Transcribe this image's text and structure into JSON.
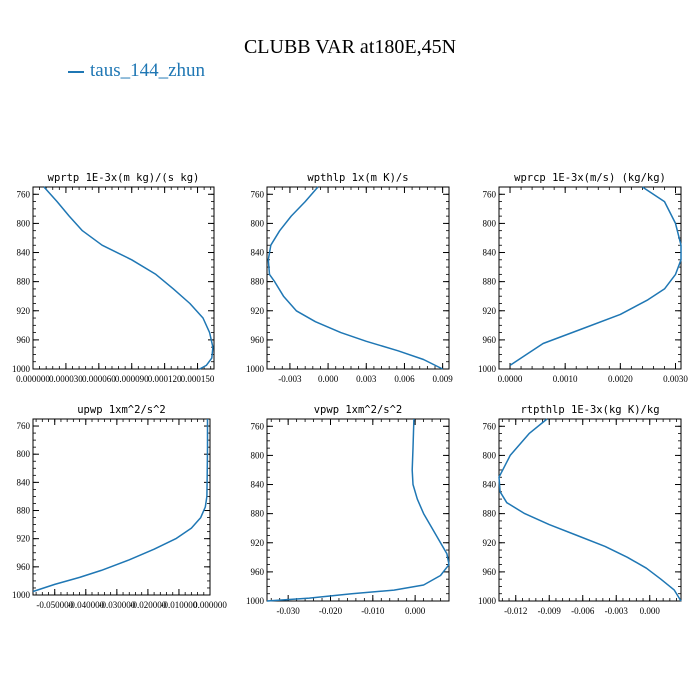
{
  "title": "CLUBB VAR at180E,45N",
  "legend": {
    "label": "taus_144_zhun",
    "color": "#1f77b4"
  },
  "chart_data": [
    {
      "type": "line",
      "title": "wprtp   1E-3x(m kg)/(s kg)",
      "xlim": [
        0,
        0.000165
      ],
      "ylim": [
        1000,
        750
      ],
      "xticks": [
        0,
        3e-05,
        6e-05,
        9e-05,
        0.00012,
        0.00015
      ],
      "xticklabels": [
        "0.000000",
        "0.000030",
        "0.000060",
        "0.000090",
        "0.000120",
        "0.000150"
      ],
      "yticks": [
        760,
        800,
        840,
        880,
        920,
        960,
        1000
      ],
      "series": [
        {
          "x": [
            1e-05,
            2.2e-05,
            3.3e-05,
            4.5e-05,
            6.3e-05,
            9e-05,
            0.000112,
            0.000128,
            0.000143,
            0.000155,
            0.000161,
            0.000164,
            0.000163,
            0.000158,
            0.000152
          ],
          "y": [
            750,
            770,
            790,
            810,
            830,
            850,
            870,
            890,
            910,
            930,
            950,
            970,
            985,
            995,
            1000
          ]
        }
      ]
    },
    {
      "type": "line",
      "title": "wpthlp   1x(m K)/s",
      "xlim": [
        -0.0048,
        0.0095
      ],
      "ylim": [
        1000,
        750
      ],
      "xticks": [
        -0.003,
        0,
        0.003,
        0.006,
        0.009
      ],
      "xticklabels": [
        "-0.003",
        "0.000",
        "0.003",
        "0.006",
        "0.009"
      ],
      "yticks": [
        760,
        800,
        840,
        880,
        920,
        960,
        1000
      ],
      "series": [
        {
          "x": [
            -0.0008,
            -0.0018,
            -0.0029,
            -0.0038,
            -0.0045,
            -0.0047,
            -0.0046,
            -0.0042,
            -0.0035,
            -0.0025,
            -0.001,
            0.001,
            0.003,
            0.0055,
            0.0075,
            0.009
          ],
          "y": [
            750,
            770,
            790,
            810,
            830,
            850,
            870,
            880,
            900,
            920,
            935,
            950,
            962,
            975,
            987,
            1000
          ]
        }
      ]
    },
    {
      "type": "line",
      "title": "wprcp   1E-3x(m/s) (kg/kg)",
      "xlim": [
        -0.0002,
        0.0031
      ],
      "ylim": [
        1000,
        750
      ],
      "xticks": [
        0,
        0.001,
        0.002,
        0.003
      ],
      "xticklabels": [
        "0.0000",
        "0.0010",
        "0.0020",
        "0.0030"
      ],
      "yticks": [
        760,
        800,
        840,
        880,
        920,
        960,
        1000
      ],
      "series": [
        {
          "x": [
            0.0024,
            0.0028,
            0.003,
            0.0031,
            0.0031,
            0.003,
            0.0028,
            0.0025,
            0.002,
            0.0013,
            0.0006,
            0.0003,
            0.0
          ],
          "y": [
            750,
            770,
            800,
            830,
            850,
            870,
            890,
            905,
            925,
            945,
            965,
            980,
            995
          ]
        }
      ]
    },
    {
      "type": "line",
      "title": "upwp   1xm^2/s^2",
      "xlim": [
        -0.057,
        0.0
      ],
      "ylim": [
        1000,
        750
      ],
      "xticks": [
        -0.05,
        -0.04,
        -0.03,
        -0.02,
        -0.01,
        0
      ],
      "xticklabels": [
        "-0.050000",
        "-0.040000",
        "-0.030000",
        "-0.020000",
        "-0.010000",
        "0.000000"
      ],
      "yticks": [
        760,
        800,
        840,
        880,
        920,
        960,
        1000
      ],
      "series": [
        {
          "x": [
            -0.0008,
            -0.0008,
            -0.0009,
            -0.001,
            -0.0015,
            -0.003,
            -0.006,
            -0.011,
            -0.018,
            -0.026,
            -0.035,
            -0.042,
            -0.05,
            -0.057
          ],
          "y": [
            750,
            790,
            830,
            860,
            875,
            890,
            905,
            920,
            935,
            950,
            965,
            975,
            985,
            995
          ]
        }
      ]
    },
    {
      "type": "line",
      "title": "vpwp   1xm^2/s^2",
      "xlim": [
        -0.035,
        0.008
      ],
      "ylim": [
        1000,
        750
      ],
      "xticks": [
        -0.03,
        -0.02,
        -0.01,
        0
      ],
      "xticklabels": [
        "-0.030",
        "-0.020",
        "-0.010",
        "0.000"
      ],
      "yticks": [
        760,
        800,
        840,
        880,
        920,
        960,
        1000
      ],
      "series": [
        {
          "x": [
            -0.0003,
            -0.0005,
            -0.0007,
            -0.0005,
            0.0005,
            0.002,
            0.004,
            0.006,
            0.0075,
            0.008,
            0.006,
            0.002,
            -0.005,
            -0.015,
            -0.025,
            -0.035
          ],
          "y": [
            750,
            790,
            820,
            840,
            860,
            880,
            900,
            920,
            935,
            950,
            965,
            978,
            985,
            990,
            996,
            1000
          ]
        }
      ]
    },
    {
      "type": "line",
      "title": "rtpthlp   1E-3x(kg K)/kg",
      "xlim": [
        -0.0135,
        0.0028
      ],
      "ylim": [
        1000,
        750
      ],
      "xticks": [
        -0.012,
        -0.009,
        -0.006,
        -0.003,
        0
      ],
      "xticklabels": [
        "-0.012",
        "-0.009",
        "-0.006",
        "-0.003",
        "0.000"
      ],
      "yticks": [
        760,
        800,
        840,
        880,
        920,
        960,
        1000
      ],
      "series": [
        {
          "x": [
            -0.0092,
            -0.0108,
            -0.0125,
            -0.0135,
            -0.0134,
            -0.0128,
            -0.0112,
            -0.009,
            -0.0065,
            -0.004,
            -0.002,
            -0.0003,
            0.001,
            0.0022,
            0.0028
          ],
          "y": [
            750,
            770,
            800,
            830,
            850,
            865,
            880,
            895,
            910,
            925,
            940,
            955,
            970,
            985,
            1000
          ]
        }
      ]
    }
  ]
}
